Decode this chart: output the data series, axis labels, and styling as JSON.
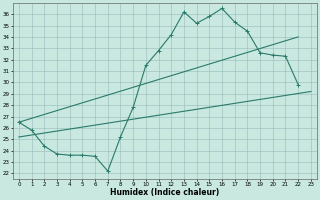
{
  "title": "",
  "xlabel": "Humidex (Indice chaleur)",
  "bg_color": "#c8e8e0",
  "line_color": "#2a7a6a",
  "xlim": [
    -0.5,
    23.5
  ],
  "ylim": [
    21.5,
    37.0
  ],
  "xticks": [
    0,
    1,
    2,
    3,
    4,
    5,
    6,
    7,
    8,
    9,
    10,
    11,
    12,
    13,
    14,
    15,
    16,
    17,
    18,
    19,
    20,
    21,
    22,
    23
  ],
  "yticks": [
    22,
    23,
    24,
    25,
    26,
    27,
    28,
    29,
    30,
    31,
    32,
    33,
    34,
    35,
    36
  ],
  "wavy_x": [
    0,
    1,
    2,
    3,
    4,
    5,
    6,
    7,
    8,
    9,
    10,
    11,
    12,
    13,
    14,
    15,
    16,
    17,
    18,
    19,
    20,
    21,
    22
  ],
  "wavy_y": [
    26.5,
    25.8,
    24.4,
    23.7,
    23.6,
    23.6,
    23.5,
    22.2,
    25.2,
    27.8,
    31.5,
    32.8,
    34.2,
    36.2,
    35.2,
    35.8,
    36.5,
    35.3,
    34.5,
    32.6,
    32.4,
    32.3,
    29.8
  ],
  "upper_line_x": [
    0,
    22
  ],
  "upper_line_y": [
    26.5,
    34.0
  ],
  "lower_line_x": [
    0,
    23
  ],
  "lower_line_y": [
    25.2,
    29.2
  ]
}
